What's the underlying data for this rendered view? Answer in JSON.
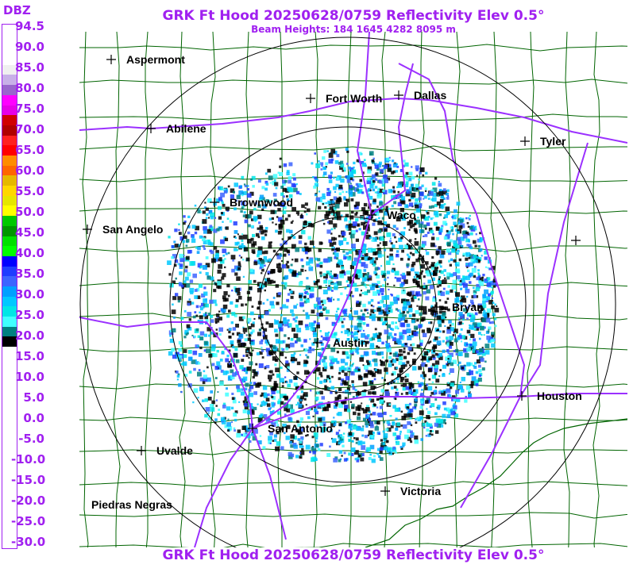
{
  "header": {
    "title": "GRK Ft Hood 20250628/0759 Reflectivity Elev 0.5°",
    "subtitle": "Beam Heights: 184 1645 4282 8095 m",
    "footer": "GRK Ft Hood 20250628/0759 Reflectivity Elev 0.5°"
  },
  "legend": {
    "title": "DBZ",
    "labels": [
      "94.5",
      "90.0",
      "85.0",
      "80.0",
      "75.0",
      "70.0",
      "65.0",
      "60.0",
      "55.0",
      "50.0",
      "45.0",
      "40.0",
      "35.0",
      "30.0",
      "25.0",
      "20.0",
      "15.0",
      "10.0",
      "5.0",
      "0.0",
      "-5.0",
      "-10.0",
      "-15.0",
      "-20.0",
      "-25.0",
      "-30.0"
    ],
    "colors": [
      "#ffffff",
      "#ffffff",
      "#ffffff",
      "#ffffff",
      "#f0f0f0",
      "#c8b0e8",
      "#9966cc",
      "#ff00ff",
      "#e600e6",
      "#d00000",
      "#b00000",
      "#ff2020",
      "#ff0000",
      "#ff8c00",
      "#ff6600",
      "#e6b800",
      "#ffd700",
      "#e6e600",
      "#ffff00",
      "#00c800",
      "#009600",
      "#00e000",
      "#00ff00",
      "#0000ff",
      "#1e3cff",
      "#3c64ff",
      "#00a0ff",
      "#00c8ff",
      "#00e6e6",
      "#40ffff",
      "#008080",
      "#000000",
      "#ffffff",
      "#ffffff",
      "#ffffff",
      "#ffffff",
      "#ffffff",
      "#ffffff",
      "#ffffff",
      "#ffffff",
      "#ffffff",
      "#ffffff",
      "#ffffff",
      "#ffffff",
      "#ffffff",
      "#ffffff",
      "#ffffff",
      "#ffffff",
      "#ffffff",
      "#ffffff",
      "#ffffff",
      "#ffffff"
    ]
  },
  "cities": [
    {
      "name": "Aspermont"
    },
    {
      "name": "Fort Worth"
    },
    {
      "name": "Dallas"
    },
    {
      "name": "Abilene"
    },
    {
      "name": "Tyler"
    },
    {
      "name": "Brownwood"
    },
    {
      "name": "Waco"
    },
    {
      "name": "San Angelo"
    },
    {
      "name": "Bryan"
    },
    {
      "name": "Austin"
    },
    {
      "name": "Houston"
    },
    {
      "name": "San Antonio"
    },
    {
      "name": "Uvalde"
    },
    {
      "name": "Victoria"
    },
    {
      "name": "Piedras Negras"
    },
    {
      "name": ""
    }
  ],
  "colors": {
    "accent": "#a020f0",
    "county_lines": "#006400",
    "highways": "#9b30ff",
    "range_rings": "#000000"
  }
}
